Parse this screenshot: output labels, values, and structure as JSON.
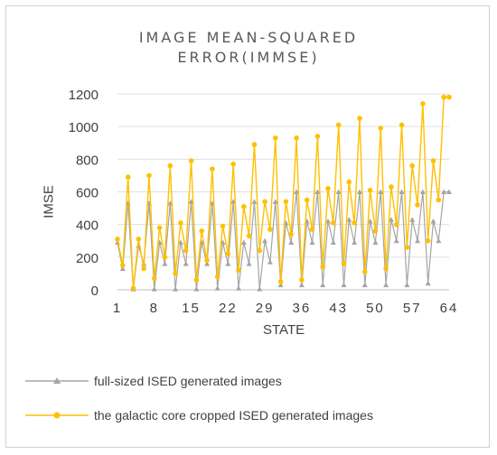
{
  "chart_data": {
    "type": "line",
    "title_lines": [
      "IMAGE MEAN-SQUARED",
      "ERROR(IMMSE)"
    ],
    "xlabel": "STATE",
    "ylabel": "IMSE",
    "ylim": [
      0,
      1200
    ],
    "yticks": [
      0,
      200,
      400,
      600,
      800,
      1000,
      1200
    ],
    "xticks": [
      "1",
      "8",
      "15",
      "22",
      "29",
      "36",
      "43",
      "50",
      "57",
      "64"
    ],
    "xtick_positions": [
      1,
      8,
      15,
      22,
      29,
      36,
      43,
      50,
      57,
      64
    ],
    "xlim": [
      1,
      64
    ],
    "grid": true,
    "legend_position": "bottom",
    "series": [
      {
        "name": "full-sized ISED generated images",
        "color": "#a5a5a5",
        "marker": "triangle",
        "values": [
          290,
          130,
          530,
          5,
          270,
          160,
          530,
          5,
          290,
          160,
          530,
          5,
          290,
          160,
          540,
          5,
          290,
          160,
          530,
          10,
          290,
          160,
          540,
          10,
          290,
          160,
          540,
          5,
          300,
          170,
          540,
          30,
          410,
          290,
          600,
          30,
          420,
          290,
          600,
          30,
          420,
          290,
          600,
          30,
          430,
          290,
          600,
          30,
          420,
          290,
          600,
          30,
          430,
          300,
          600,
          30,
          430,
          300,
          600,
          40,
          420,
          300,
          600,
          600
        ]
      },
      {
        "name": "the galactic core cropped ISED generated images",
        "color": "#ffc000",
        "marker": "circle",
        "values": [
          310,
          150,
          690,
          10,
          310,
          130,
          700,
          70,
          380,
          200,
          760,
          100,
          410,
          240,
          790,
          60,
          360,
          180,
          740,
          80,
          390,
          220,
          770,
          120,
          510,
          330,
          890,
          240,
          540,
          370,
          930,
          50,
          540,
          340,
          930,
          60,
          550,
          370,
          940,
          140,
          620,
          410,
          1010,
          160,
          660,
          410,
          1050,
          110,
          610,
          360,
          990,
          130,
          630,
          400,
          1010,
          260,
          760,
          520,
          1140,
          300,
          790,
          550,
          1180,
          1180
        ]
      }
    ]
  }
}
